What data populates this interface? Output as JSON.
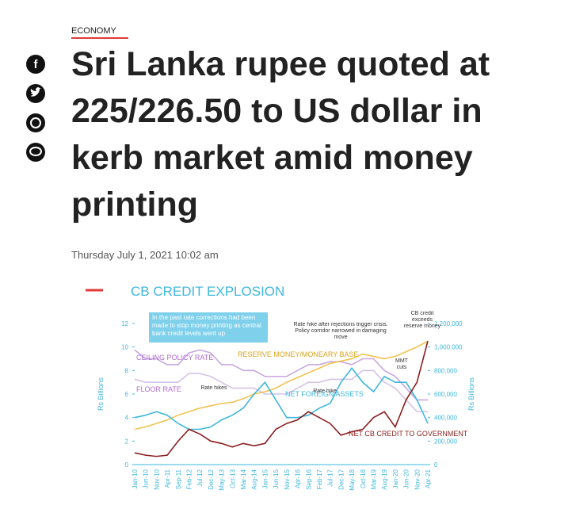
{
  "article": {
    "section": "ECONOMY",
    "title": "Sri Lanka rupee quoted at 225/226.50 to US dollar in kerb market amid money printing",
    "date": "Thursday July 1, 2021 10:02 am"
  },
  "chart_data": {
    "type": "line",
    "title": "CB CREDIT EXPLOSION",
    "categories": [
      "Jan-10",
      "Jun-10",
      "Nov-10",
      "Apr-11",
      "Sep-11",
      "Feb-12",
      "Jul-12",
      "Dec-12",
      "May-13",
      "Oct-13",
      "Mar-14",
      "Aug-14",
      "Jan-15",
      "Jun-15",
      "Nov-15",
      "Apr-16",
      "Sep-16",
      "Feb-17",
      "Jul-17",
      "Dec-17",
      "May-18",
      "Oct-18",
      "Mar-19",
      "Aug-19",
      "Jan-20",
      "Jun-20",
      "Nov-20",
      "Apr-21"
    ],
    "ylabel": "Rs Billions",
    "y2label": "Rs Billions",
    "ylim": [
      0,
      12
    ],
    "yticks": [
      0,
      2,
      4,
      6,
      8,
      10,
      12
    ],
    "y2lim": [
      0,
      1200000
    ],
    "y2ticks": [
      0,
      {
        "value": 200000,
        "label": "200,000"
      },
      {
        "value": 400000,
        "label": "400,000"
      },
      {
        "value": 600000,
        "label": "600,000"
      },
      {
        "value": 800000,
        "label": "800,000"
      },
      {
        "value": 1000000,
        "label": "1,000,000"
      },
      {
        "value": 1200000,
        "label": "1,200,000"
      }
    ],
    "series": [
      {
        "name": "CEILING POLICY RATE",
        "color": "#c9a7e0",
        "values": [
          9.75,
          9.0,
          9.0,
          8.5,
          8.5,
          9.5,
          9.75,
          9.5,
          8.5,
          8.5,
          8.0,
          8.0,
          7.5,
          7.5,
          7.5,
          8.0,
          8.5,
          8.5,
          8.75,
          8.75,
          8.5,
          9.0,
          9.0,
          8.0,
          7.5,
          6.5,
          5.5,
          5.5
        ]
      },
      {
        "name": "FLOOR RATE",
        "color": "#d6c2e6",
        "values": [
          7.25,
          7.0,
          7.0,
          7.0,
          7.0,
          7.75,
          7.75,
          7.5,
          7.0,
          6.5,
          6.5,
          6.5,
          6.0,
          6.0,
          6.0,
          6.5,
          7.0,
          7.0,
          7.25,
          7.25,
          7.25,
          8.0,
          8.0,
          7.0,
          6.5,
          5.5,
          4.5,
          4.5
        ]
      },
      {
        "name": "RESERVE MONEY/MONEARY BASE",
        "color": "#f2c24f",
        "axis": "y2",
        "values": [
          300000,
          320000,
          350000,
          380000,
          420000,
          450000,
          480000,
          500000,
          520000,
          530000,
          560000,
          600000,
          620000,
          650000,
          700000,
          740000,
          780000,
          820000,
          860000,
          880000,
          900000,
          940000,
          920000,
          900000,
          920000,
          960000,
          1000000,
          1050000
        ]
      },
      {
        "name": "NET FOREIGN ASSETS",
        "color": "#3fb7dd",
        "axis": "y2",
        "values": [
          400000,
          420000,
          450000,
          420000,
          350000,
          300000,
          300000,
          320000,
          380000,
          420000,
          480000,
          600000,
          700000,
          550000,
          400000,
          400000,
          420000,
          480000,
          520000,
          700000,
          820000,
          700000,
          620000,
          750000,
          700000,
          700000,
          550000,
          350000
        ]
      },
      {
        "name": "NET CB CREDIT TO GOVERNMENT",
        "color": "#8b1f1f",
        "axis": "y2",
        "values": [
          100000,
          80000,
          70000,
          80000,
          200000,
          300000,
          260000,
          200000,
          180000,
          150000,
          180000,
          160000,
          180000,
          300000,
          350000,
          380000,
          450000,
          400000,
          350000,
          250000,
          280000,
          300000,
          400000,
          450000,
          320000,
          550000,
          700000,
          1050000
        ]
      }
    ],
    "annotations": [
      "In the past rate corrections had been made to stop money printing as central bank credit levels went up",
      "Rate hikes",
      "Rate hike",
      "Rate hike after rejections trigger crisis. Policy corridor narrowed in damaging move",
      "MMT cuts",
      "CB credit exceeds reserve money"
    ]
  }
}
